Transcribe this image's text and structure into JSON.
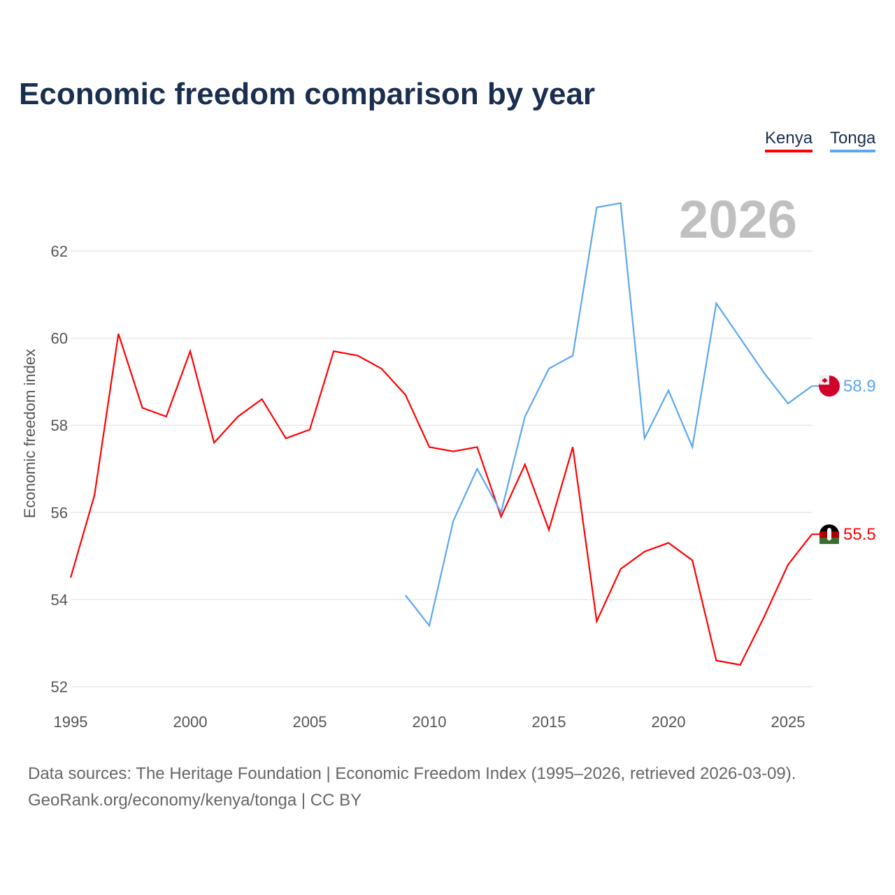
{
  "chart_data": {
    "type": "line",
    "title": "Economic freedom comparison by year",
    "xlabel": "",
    "ylabel": "Economic freedom index",
    "xlim": [
      1995,
      2026
    ],
    "ylim": [
      52,
      63.5
    ],
    "yticks": [
      52,
      54,
      56,
      58,
      60,
      62
    ],
    "xticks": [
      1995,
      2000,
      2005,
      2010,
      2015,
      2020,
      2025
    ],
    "grid": true,
    "legend_placement": "top-right",
    "year_watermark": "2026",
    "series": [
      {
        "name": "Kenya",
        "color": "#ff0000",
        "end_label": "55.5",
        "x": [
          1995,
          1996,
          1997,
          1998,
          1999,
          2000,
          2001,
          2002,
          2003,
          2004,
          2005,
          2006,
          2007,
          2008,
          2009,
          2010,
          2011,
          2012,
          2013,
          2014,
          2015,
          2016,
          2017,
          2018,
          2019,
          2020,
          2021,
          2022,
          2023,
          2024,
          2025,
          2026
        ],
        "values": [
          54.5,
          56.4,
          60.1,
          58.4,
          58.2,
          59.7,
          57.6,
          58.2,
          58.6,
          57.7,
          57.9,
          59.7,
          59.6,
          59.3,
          58.7,
          57.5,
          57.4,
          57.5,
          55.9,
          57.1,
          55.6,
          57.5,
          53.5,
          54.7,
          55.1,
          55.3,
          54.9,
          52.6,
          52.5,
          53.6,
          54.8,
          55.5
        ]
      },
      {
        "name": "Tonga",
        "color": "#5ca7ef",
        "end_label": "58.9",
        "x": [
          2009,
          2010,
          2011,
          2012,
          2013,
          2014,
          2015,
          2016,
          2017,
          2018,
          2019,
          2020,
          2021,
          2022,
          2023,
          2024,
          2025,
          2026
        ],
        "values": [
          54.1,
          53.4,
          55.8,
          57.0,
          56.0,
          58.2,
          59.3,
          59.6,
          63.0,
          63.1,
          57.7,
          58.8,
          57.5,
          60.8,
          60.0,
          59.2,
          58.5,
          58.9
        ]
      }
    ]
  },
  "source_line1": "Data sources: The Heritage Foundation | Economic Freedom Index (1995–2026, retrieved 2026-03-09).",
  "source_line2": "GeoRank.org/economy/kenya/tonga | CC BY"
}
